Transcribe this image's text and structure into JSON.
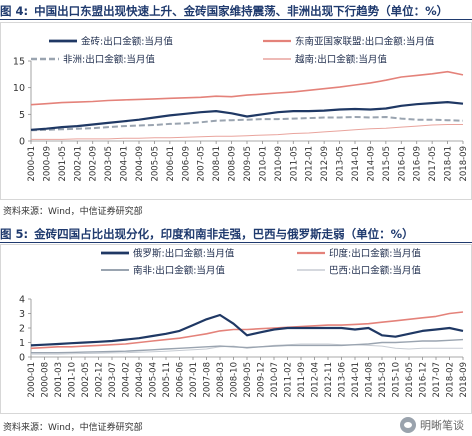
{
  "figure4": {
    "label": "图 4:",
    "title": "中国出口东盟出现快速上升、金砖国家维持震荡、非洲出现下行趋势（单位：%）",
    "source": "资料来源：Wind，中信证券研究部"
  },
  "figure5": {
    "label": "图 5:",
    "title": "金砖四国占比出现分化，印度和南非走强，巴西与俄罗斯走弱（单位：%）",
    "source": "资料来源：Wind，中信证券研究部"
  },
  "watermark": {
    "text": "明晰笔谈",
    "icon": "wechat-icon"
  },
  "chart_data": [
    {
      "type": "line",
      "x_labels": [
        "2000-01",
        "2000-09",
        "2001-05",
        "2002-01",
        "2002-09",
        "2003-05",
        "2004-01",
        "2004-09",
        "2005-05",
        "2006-01",
        "2006-09",
        "2007-05",
        "2008-01",
        "2008-09",
        "2009-05",
        "2010-01",
        "2010-09",
        "2011-05",
        "2012-01",
        "2012-09",
        "2013-05",
        "2014-01",
        "2014-09",
        "2015-05",
        "2016-01",
        "2016-09",
        "2017-05",
        "2018-01",
        "2018-09"
      ],
      "ylim": [
        0,
        15
      ],
      "yticks": [
        0,
        5,
        10,
        15
      ],
      "legend_position": "top",
      "series": [
        {
          "name": "金砖:出口金额:当月值",
          "color": "#1f3864",
          "width": 2.2,
          "dash": "",
          "values": [
            2.1,
            2.3,
            2.6,
            2.8,
            3.1,
            3.4,
            3.7,
            4.0,
            4.4,
            4.8,
            5.1,
            5.4,
            5.6,
            5.2,
            4.6,
            5.0,
            5.4,
            5.6,
            5.6,
            5.7,
            5.9,
            6.0,
            5.9,
            6.1,
            6.6,
            6.9,
            7.1,
            7.3,
            7.0
          ]
        },
        {
          "name": "东南亚国家联盟:出口金额:当月值",
          "color": "#e4827a",
          "width": 1.6,
          "dash": "",
          "values": [
            6.8,
            7.0,
            7.2,
            7.3,
            7.4,
            7.6,
            7.7,
            7.8,
            7.9,
            8.0,
            8.1,
            8.2,
            8.4,
            8.3,
            8.6,
            8.8,
            9.0,
            9.2,
            9.5,
            9.8,
            10.1,
            10.5,
            10.9,
            11.4,
            12.0,
            12.3,
            12.6,
            13.0,
            12.4
          ]
        },
        {
          "name": "非洲:出口金额:当月值",
          "color": "#9aa4b0",
          "width": 2.0,
          "dash": "6,3",
          "values": [
            2.0,
            2.1,
            2.2,
            2.3,
            2.4,
            2.6,
            2.8,
            2.9,
            3.0,
            3.2,
            3.3,
            3.5,
            3.8,
            3.9,
            4.0,
            4.1,
            4.1,
            4.2,
            4.3,
            4.4,
            4.4,
            4.5,
            4.4,
            4.5,
            4.2,
            4.0,
            4.0,
            3.9,
            3.8
          ]
        },
        {
          "name": "越南:出口金额:当月值",
          "color": "#e9a49d",
          "width": 1.0,
          "dash": "",
          "values": [
            0.3,
            0.3,
            0.3,
            0.4,
            0.4,
            0.4,
            0.5,
            0.5,
            0.6,
            0.6,
            0.7,
            0.8,
            0.9,
            0.9,
            1.0,
            1.1,
            1.2,
            1.4,
            1.5,
            1.7,
            1.9,
            2.1,
            2.3,
            2.4,
            2.6,
            2.8,
            3.0,
            3.1,
            3.1
          ]
        }
      ]
    },
    {
      "type": "line",
      "x_labels": [
        "2000-01",
        "2000-08",
        "2001-03",
        "2001-10",
        "2002-05",
        "2002-12",
        "2003-07",
        "2004-02",
        "2004-09",
        "2005-04",
        "2005-11",
        "2006-06",
        "2007-01",
        "2007-08",
        "2008-03",
        "2008-10",
        "2009-05",
        "2009-12",
        "2010-07",
        "2011-02",
        "2011-09",
        "2012-04",
        "2012-11",
        "2013-06",
        "2014-01",
        "2014-08",
        "2015-03",
        "2015-10",
        "2016-05",
        "2016-12",
        "2017-07",
        "2018-02",
        "2018-09"
      ],
      "ylim": [
        0,
        4
      ],
      "yticks": [
        0,
        1,
        2,
        3,
        4
      ],
      "legend_position": "top",
      "series": [
        {
          "name": "俄罗斯:出口金额:当月值",
          "color": "#1f3864",
          "width": 2.2,
          "dash": "",
          "values": [
            0.8,
            0.85,
            0.9,
            0.95,
            1.0,
            1.05,
            1.1,
            1.2,
            1.3,
            1.45,
            1.6,
            1.8,
            2.2,
            2.6,
            2.9,
            2.3,
            1.5,
            1.7,
            1.9,
            2.0,
            2.0,
            2.0,
            2.0,
            2.0,
            1.9,
            2.0,
            1.5,
            1.4,
            1.6,
            1.8,
            1.9,
            2.0,
            1.8
          ]
        },
        {
          "name": "印度:出口金额:当月值",
          "color": "#e4827a",
          "width": 1.6,
          "dash": "",
          "values": [
            0.6,
            0.65,
            0.7,
            0.7,
            0.75,
            0.8,
            0.85,
            0.9,
            1.0,
            1.1,
            1.2,
            1.3,
            1.45,
            1.6,
            1.8,
            1.9,
            1.9,
            1.95,
            2.0,
            2.05,
            2.1,
            2.15,
            2.2,
            2.2,
            2.25,
            2.3,
            2.4,
            2.5,
            2.6,
            2.7,
            2.8,
            3.0,
            3.1
          ]
        },
        {
          "name": "南非:出口金额:当月值",
          "color": "#9aa4b0",
          "width": 1.4,
          "dash": "",
          "values": [
            0.3,
            0.3,
            0.3,
            0.32,
            0.34,
            0.36,
            0.38,
            0.4,
            0.45,
            0.5,
            0.55,
            0.6,
            0.65,
            0.7,
            0.75,
            0.7,
            0.65,
            0.7,
            0.75,
            0.8,
            0.8,
            0.8,
            0.8,
            0.8,
            0.85,
            0.9,
            1.0,
            1.0,
            1.05,
            1.1,
            1.1,
            1.15,
            1.2
          ]
        },
        {
          "name": "巴西:出口金额:当月值",
          "color": "#c7ccd3",
          "width": 1.0,
          "dash": "",
          "values": [
            0.2,
            0.2,
            0.2,
            0.22,
            0.24,
            0.26,
            0.28,
            0.3,
            0.33,
            0.36,
            0.4,
            0.45,
            0.5,
            0.55,
            0.7,
            0.75,
            0.6,
            0.7,
            0.8,
            0.85,
            0.9,
            0.9,
            0.9,
            0.85,
            0.85,
            0.8,
            0.75,
            0.6,
            0.55,
            0.6,
            0.6,
            0.6,
            0.6
          ]
        }
      ]
    }
  ]
}
